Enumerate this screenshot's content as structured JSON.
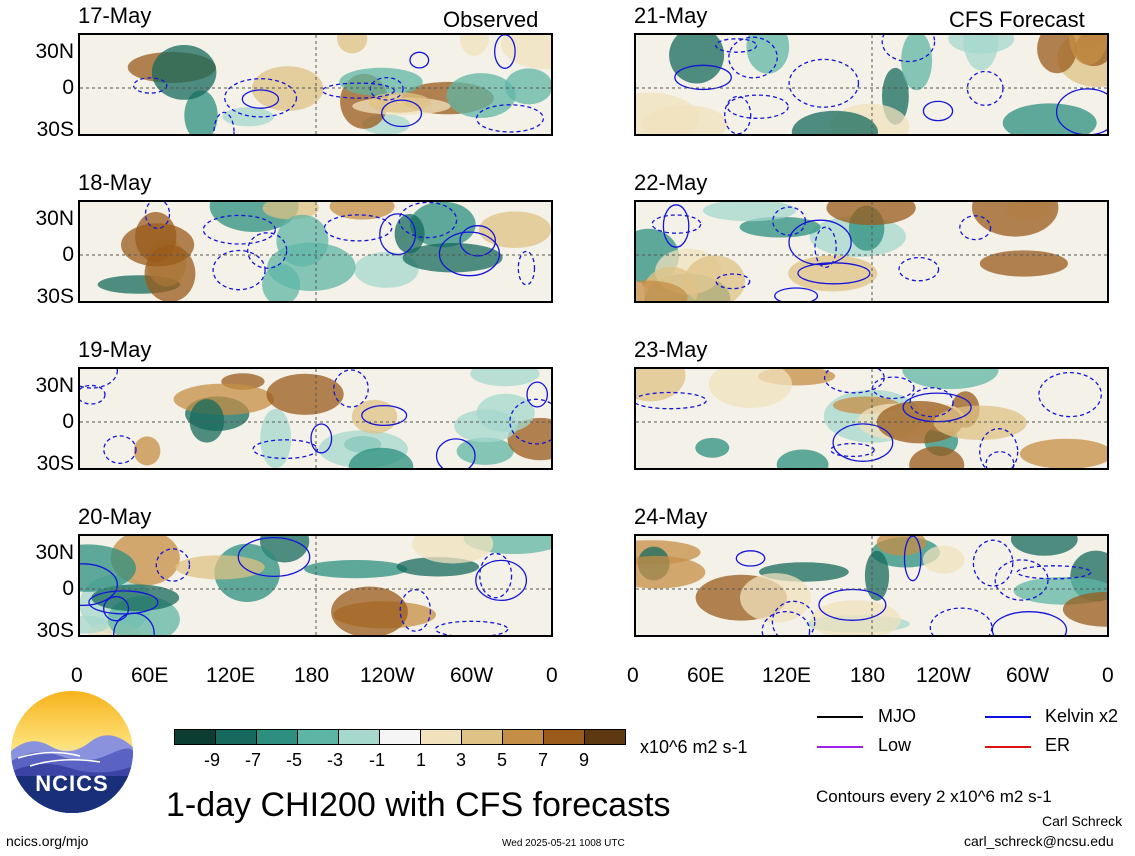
{
  "title": "1-day CHI200 with CFS forecasts",
  "left_tag": "Observed",
  "right_tag": "CFS Forecast",
  "panels": [
    {
      "date": "17-May",
      "column": "left"
    },
    {
      "date": "18-May",
      "column": "left"
    },
    {
      "date": "19-May",
      "column": "left"
    },
    {
      "date": "20-May",
      "column": "left"
    },
    {
      "date": "21-May",
      "column": "right"
    },
    {
      "date": "22-May",
      "column": "right"
    },
    {
      "date": "23-May",
      "column": "right"
    },
    {
      "date": "24-May",
      "column": "right"
    }
  ],
  "lat_labels": [
    "30N",
    "0",
    "30S"
  ],
  "lon_labels": [
    "0",
    "60E",
    "120E",
    "180",
    "120W",
    "60W",
    "0"
  ],
  "colorbar": {
    "levels": [
      "-9",
      "-7",
      "-5",
      "-3",
      "-1",
      "1",
      "3",
      "5",
      "7",
      "9"
    ],
    "colors": [
      "#0b3d33",
      "#16695c",
      "#2c8f7f",
      "#5fb5a5",
      "#a6d8ce",
      "#f5f5f5",
      "#f1e2bd",
      "#dfc285",
      "#c58e46",
      "#9a5b1b",
      "#5e3810"
    ],
    "units": "x10^6 m2 s-1"
  },
  "legend": {
    "items": [
      {
        "label": "MJO",
        "color": "#000000"
      },
      {
        "label": "Kelvin x2",
        "color": "#1010e0"
      },
      {
        "label": "Low",
        "color": "#a020f0"
      },
      {
        "label": "ER",
        "color": "#e01010"
      }
    ],
    "contours_note": "Contours every 2 x10^6 m2 s-1"
  },
  "logo_text": "NCICS",
  "website": "ncics.org/mjo",
  "timestamp": "Wed 2025-05-21 1008 UTC",
  "author": "Carl Schreck",
  "email": "carl_schreck@ncsu.edu"
}
